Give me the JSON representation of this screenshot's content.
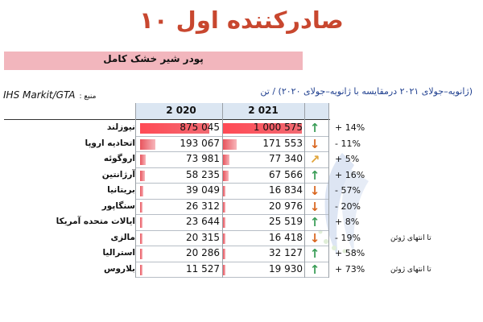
{
  "title": "۱۰ صادرکننده اول",
  "subtitle": "پودر شیر خشک کامل",
  "period": "(ژانویه–جولای ۲۰۲۱ درمقایسه با ژانویه–جولای ۲۰۲۰) / تن",
  "source": {
    "name": "IHS Markit/GTA",
    "label": ": منبع"
  },
  "chart_data": {
    "type": "bar",
    "title": "۱۰ صادرکننده اول",
    "subtitle": "پودر شیر خشک کامل",
    "categories": [
      "نیوزلند",
      "اتحادیه اروپا",
      "اروگوئه",
      "آرژانتین",
      "بریتانیا",
      "سنگاپور",
      "ایالات متحده آمریکا",
      "مالزی",
      "استرالیا",
      "بلاروس"
    ],
    "series": [
      {
        "name": "2 020",
        "values": [
          875045,
          193067,
          73981,
          58235,
          39049,
          26312,
          23644,
          20315,
          20286,
          11527
        ],
        "labels": [
          "875 045",
          "193 067",
          "73 981",
          "58 235",
          "39 049",
          "26 312",
          "23 644",
          "20 315",
          "20 286",
          "11 527"
        ]
      },
      {
        "name": "2 021",
        "values": [
          1000575,
          171553,
          77340,
          67566,
          16834,
          20976,
          25519,
          16418,
          32127,
          19930
        ],
        "labels": [
          "1 000 575",
          "171 553",
          "77 340",
          "67 566",
          "16 834",
          "20 976",
          "25 519",
          "16 418",
          "32 127",
          "19 930"
        ]
      }
    ],
    "change_labels": [
      "+ 14%",
      "- 11%",
      "+ 5%",
      "+ 16%",
      "- 57%",
      "- 20%",
      "+ 8%",
      "- 19%",
      "+ 58%",
      "+ 73%"
    ],
    "trend": [
      "up",
      "down",
      "diag",
      "up",
      "down",
      "down",
      "up",
      "down",
      "up",
      "up"
    ],
    "notes": [
      "",
      "",
      "",
      "",
      "",
      "",
      "",
      "تا انتهای ژوئن",
      "",
      "تا انتهای ژوئن"
    ],
    "colors": {
      "bar": "#e8545d",
      "up": "#3a9d57",
      "down": "#d9661f",
      "header": "#dbe6f2",
      "title": "#c8472f",
      "band": "#f2b6bd"
    }
  }
}
